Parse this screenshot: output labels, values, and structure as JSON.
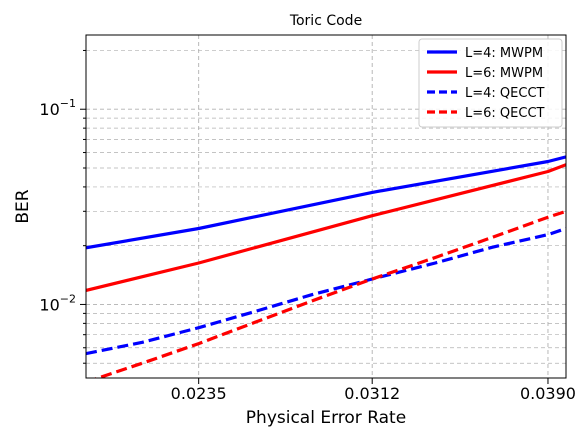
{
  "chart_data": {
    "type": "line",
    "title": "Toric Code",
    "xlabel": "Physical Error Rate",
    "ylabel": "BER",
    "xscale": "linear",
    "yscale": "log",
    "xlim": [
      0.0185,
      0.0398
    ],
    "ylim": [
      0.0042,
      0.24
    ],
    "grid": true,
    "legend_position": "top-right",
    "x_ticks": [
      {
        "value": 0.0235,
        "label": "0.0235"
      },
      {
        "value": 0.0312,
        "label": "0.0312"
      },
      {
        "value": 0.039,
        "label": "0.0390"
      }
    ],
    "y_major_ticks": [
      {
        "value": 0.01,
        "label": "10",
        "exp": "−2"
      },
      {
        "value": 0.1,
        "label": "10",
        "exp": "−1"
      }
    ],
    "series": [
      {
        "name": "L=4: MWPM",
        "color": "#0000ff",
        "dash": "solid",
        "x": [
          0.0185,
          0.0235,
          0.0312,
          0.039,
          0.0398
        ],
        "y": [
          0.0195,
          0.0245,
          0.0375,
          0.054,
          0.057
        ]
      },
      {
        "name": "L=6: MWPM",
        "color": "#ff0000",
        "dash": "solid",
        "x": [
          0.0185,
          0.0235,
          0.0312,
          0.039,
          0.0398
        ],
        "y": [
          0.0118,
          0.0163,
          0.0285,
          0.048,
          0.052
        ]
      },
      {
        "name": "L=4: QECCT",
        "color": "#0000ff",
        "dash": "dashed",
        "x": [
          0.0185,
          0.021,
          0.0235,
          0.026,
          0.0285,
          0.0312,
          0.034,
          0.0365,
          0.039,
          0.0398
        ],
        "y": [
          0.0056,
          0.0064,
          0.0076,
          0.0092,
          0.0112,
          0.0135,
          0.0163,
          0.0196,
          0.0228,
          0.0245
        ]
      },
      {
        "name": "L=6: QECCT",
        "color": "#ff0000",
        "dash": "dashed",
        "x": [
          0.0185,
          0.021,
          0.0235,
          0.026,
          0.0285,
          0.0312,
          0.034,
          0.0365,
          0.039,
          0.0398
        ],
        "y": [
          0.004,
          0.005,
          0.0063,
          0.0081,
          0.0104,
          0.0135,
          0.0174,
          0.022,
          0.028,
          0.03
        ]
      }
    ]
  }
}
